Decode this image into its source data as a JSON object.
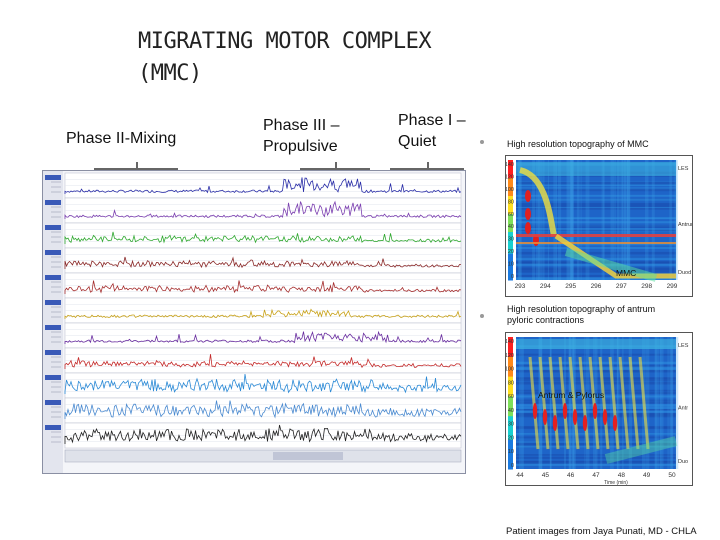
{
  "title_line1": "MIGRATING MOTOR COMPLEX",
  "title_line2": "(MMC)",
  "phases": {
    "phase2": "Phase II-Mixing",
    "phase3_line1": "Phase III –",
    "phase3_line2": "Propulsive",
    "phase1_line1": "Phase I –",
    "phase1_line2": "Quiet"
  },
  "topo1": {
    "caption": "High resolution topography of MMC",
    "label": "MMC",
    "scale": [
      "140",
      "120",
      "100",
      "80",
      "60",
      "40",
      "30",
      "20",
      "10",
      "0"
    ],
    "side_labels": [
      "LES",
      "Antrum",
      "Duod"
    ],
    "x_ticks": [
      "293",
      "294",
      "295",
      "296",
      "297",
      "298",
      "299"
    ]
  },
  "topo2": {
    "caption_line1": "High resolution topography of antrum",
    "caption_line2": "pyloric contractions",
    "label": "Antrum & Pylorus",
    "scale": [
      "140",
      "120",
      "100",
      "80",
      "60",
      "40",
      "30",
      "20",
      "10",
      "0"
    ],
    "side_labels": [
      "LES",
      "Antr",
      "Duo"
    ],
    "x_ticks": [
      "44",
      "45",
      "46",
      "47",
      "48",
      "49",
      "50"
    ],
    "x_label": "Time (min)"
  },
  "credit": "Patient images from Jaya Punati, MD - CHLA",
  "colors": {
    "channel_colors": [
      "#2b2fa8",
      "#7b3fb0",
      "#2fa82f",
      "#8a2a2a",
      "#a62f2f",
      "#c8a21a",
      "#6a2ea0",
      "#c42b2b",
      "#2b8ad6",
      "#4a8ad0",
      "#222222"
    ]
  }
}
